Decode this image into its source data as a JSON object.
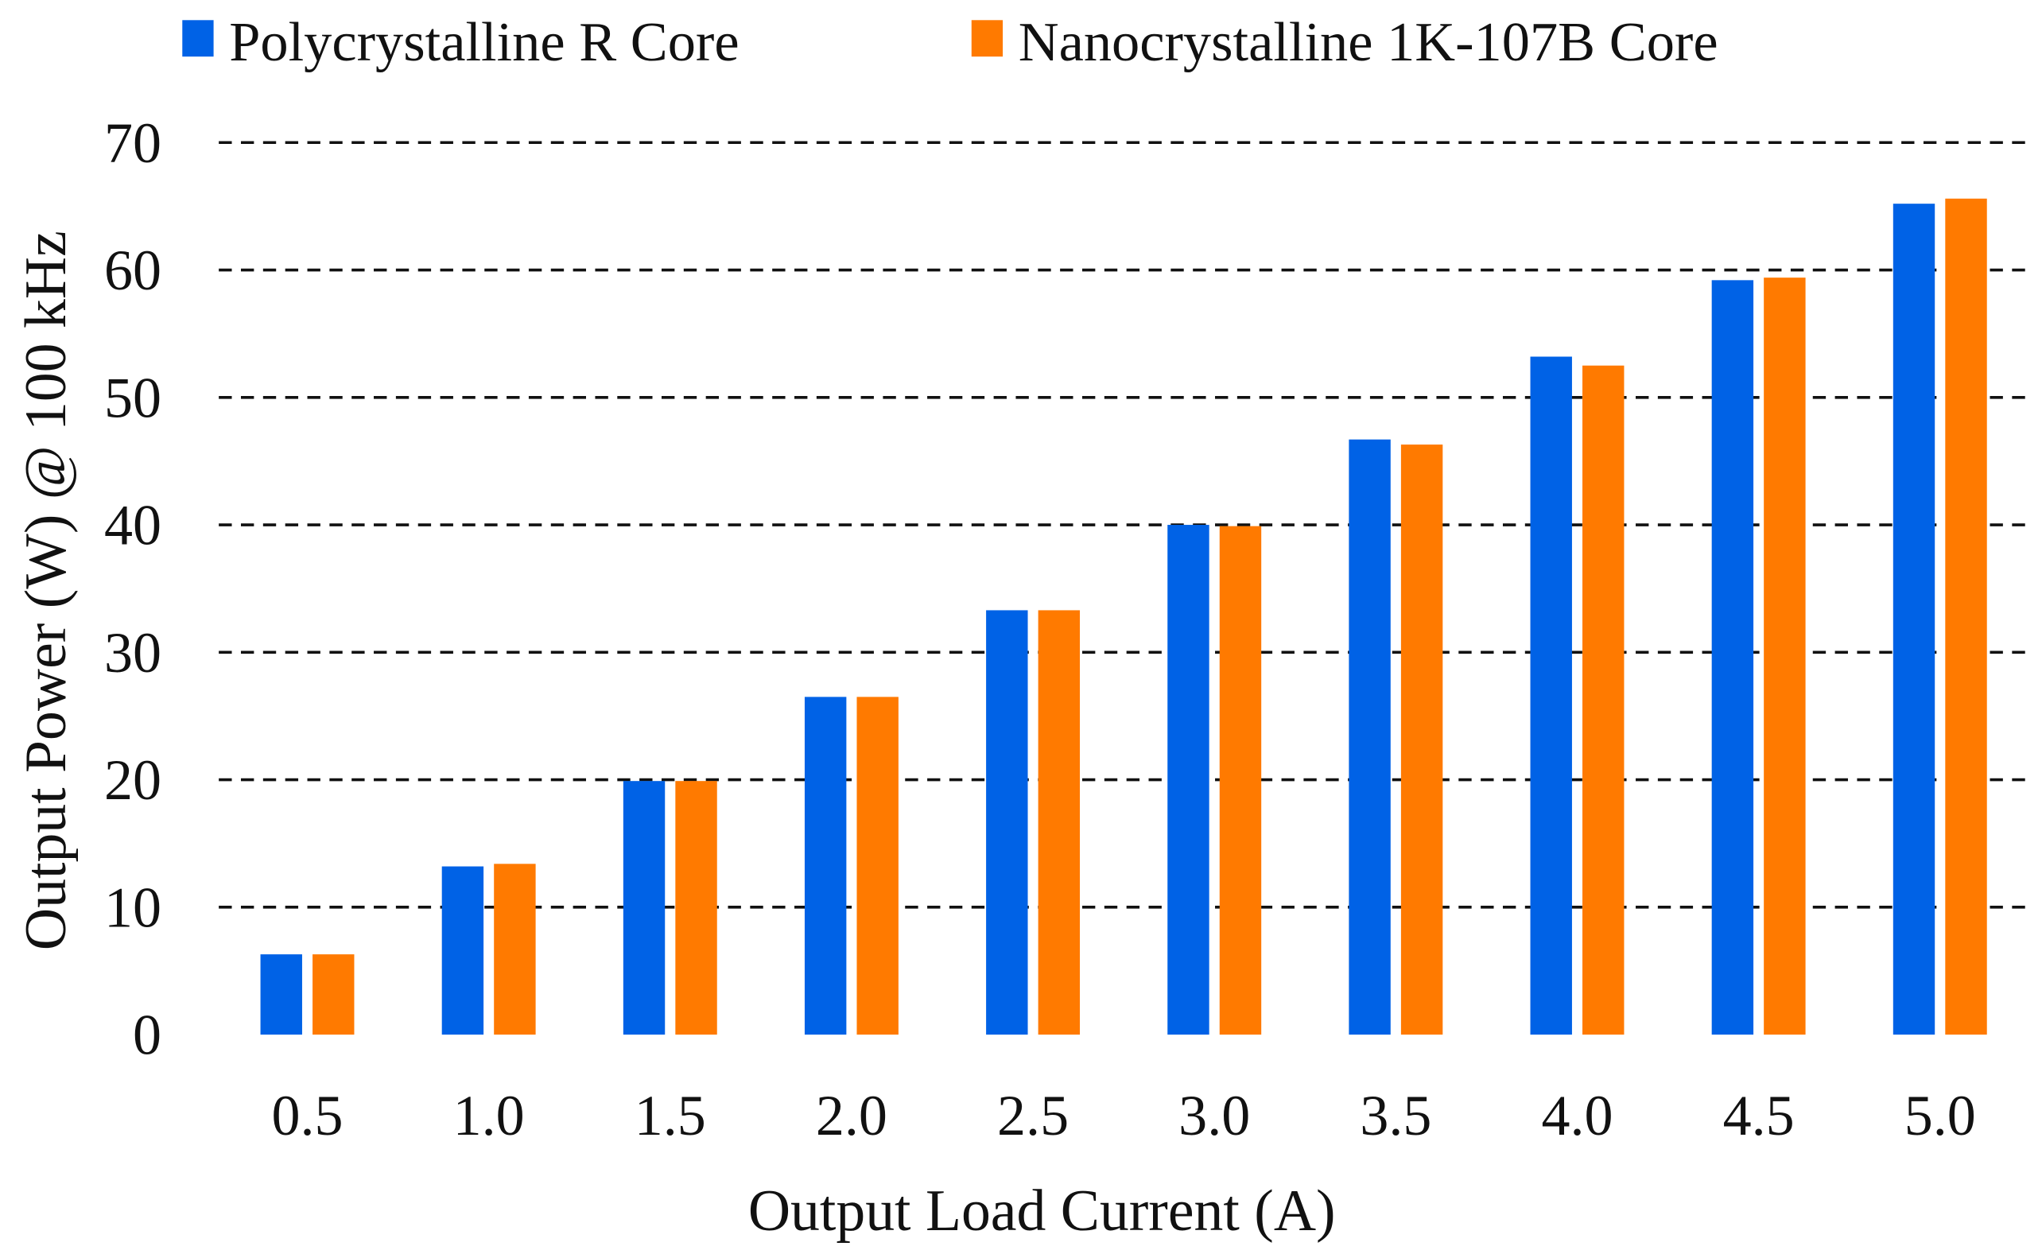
{
  "chart_data": {
    "type": "bar",
    "title": "",
    "xlabel": "Output Load Current (A)",
    "ylabel": "Output Power (W) @ 100 kHz",
    "categories": [
      "0.5",
      "1.0",
      "1.5",
      "2.0",
      "2.5",
      "3.0",
      "3.5",
      "4.0",
      "4.5",
      "5.0"
    ],
    "series": [
      {
        "name": "Polycrystalline R Core",
        "color": "#0062E6",
        "values": [
          6.3,
          13.2,
          19.9,
          26.5,
          33.3,
          40.0,
          46.7,
          53.2,
          59.2,
          65.2
        ]
      },
      {
        "name": "Nanocrystalline 1K-107B Core",
        "color": "#FF7A00",
        "values": [
          6.3,
          13.4,
          19.9,
          26.5,
          33.3,
          39.9,
          46.3,
          52.5,
          59.4,
          65.6
        ]
      }
    ],
    "ylim": [
      0,
      70
    ],
    "yticks": [
      "0",
      "10",
      "20",
      "30",
      "40",
      "50",
      "60",
      "70"
    ],
    "grid": "horizontal dashed",
    "legend": "top"
  }
}
